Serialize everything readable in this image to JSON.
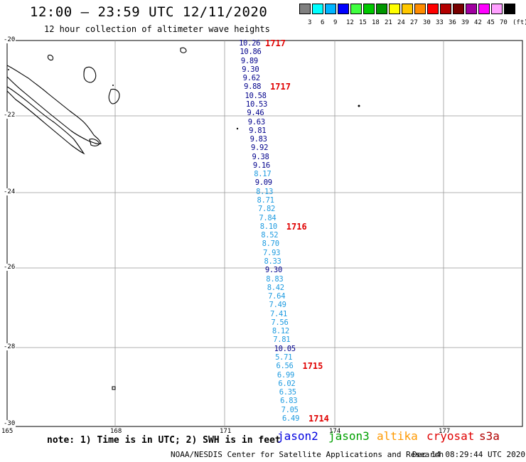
{
  "title": "12:00 – 23:59 UTC 12/11/2020",
  "subtitle": "12 hour collection of altimeter wave heights",
  "legend": {
    "colors": [
      "#808080",
      "#00ffff",
      "#00b4ff",
      "#0000ff",
      "#40ff40",
      "#00c800",
      "#009600",
      "#ffff00",
      "#ffc800",
      "#ff8c00",
      "#ff0000",
      "#b40000",
      "#780000",
      "#a000a0",
      "#ff00ff",
      "#ffa0ff",
      "#000000"
    ],
    "labels": [
      "3",
      "6",
      "9",
      "12",
      "15",
      "18",
      "21",
      "24",
      "27",
      "30",
      "33",
      "36",
      "39",
      "42",
      "45",
      "70",
      "(ft)"
    ]
  },
  "map": {
    "lat_labels": [
      "-20",
      "-22",
      "-24",
      "-26",
      "-28",
      "-30"
    ],
    "lon_labels": [
      "165",
      "168",
      "171",
      "174",
      "177"
    ]
  },
  "track": {
    "satellite": "jason2",
    "wave_heights": [
      {
        "v": "10.26",
        "c": "#00008b"
      },
      {
        "v": "10.86",
        "c": "#00008b"
      },
      {
        "v": "9.89",
        "c": "#00008b"
      },
      {
        "v": "9.30",
        "c": "#00008b"
      },
      {
        "v": "9.62",
        "c": "#00008b"
      },
      {
        "v": "9.88",
        "c": "#00008b"
      },
      {
        "v": "10.58",
        "c": "#00008b"
      },
      {
        "v": "10.53",
        "c": "#00008b"
      },
      {
        "v": "9.46",
        "c": "#00008b"
      },
      {
        "v": "9.63",
        "c": "#00008b"
      },
      {
        "v": "9.81",
        "c": "#00008b"
      },
      {
        "v": "9.83",
        "c": "#00008b"
      },
      {
        "v": "9.92",
        "c": "#00008b"
      },
      {
        "v": "9.38",
        "c": "#00008b"
      },
      {
        "v": "9.16",
        "c": "#00008b"
      },
      {
        "v": "8.17",
        "c": "#1e9be0"
      },
      {
        "v": "9.09",
        "c": "#00008b"
      },
      {
        "v": "8.13",
        "c": "#1e9be0"
      },
      {
        "v": "8.71",
        "c": "#1e9be0"
      },
      {
        "v": "7.82",
        "c": "#1e9be0"
      },
      {
        "v": "7.84",
        "c": "#1e9be0"
      },
      {
        "v": "8.10",
        "c": "#1e9be0"
      },
      {
        "v": "8.52",
        "c": "#1e9be0"
      },
      {
        "v": "8.70",
        "c": "#1e9be0"
      },
      {
        "v": "7.93",
        "c": "#1e9be0"
      },
      {
        "v": "8.33",
        "c": "#1e9be0"
      },
      {
        "v": "9.30",
        "c": "#00008b"
      },
      {
        "v": "8.83",
        "c": "#1e9be0"
      },
      {
        "v": "8.42",
        "c": "#1e9be0"
      },
      {
        "v": "7.64",
        "c": "#1e9be0"
      },
      {
        "v": "7.49",
        "c": "#1e9be0"
      },
      {
        "v": "7.41",
        "c": "#1e9be0"
      },
      {
        "v": "7.56",
        "c": "#1e9be0"
      },
      {
        "v": "8.12",
        "c": "#1e9be0"
      },
      {
        "v": "7.81",
        "c": "#1e9be0"
      },
      {
        "v": "10.05",
        "c": "#00008b"
      },
      {
        "v": "5.71",
        "c": "#1e9be0"
      },
      {
        "v": "6.56",
        "c": "#1e9be0"
      },
      {
        "v": "6.99",
        "c": "#1e9be0"
      },
      {
        "v": "6.02",
        "c": "#1e9be0"
      },
      {
        "v": "6.35",
        "c": "#1e9be0"
      },
      {
        "v": "6.83",
        "c": "#1e9be0"
      },
      {
        "v": "7.05",
        "c": "#1e9be0"
      },
      {
        "v": "6.49",
        "c": "#1e9be0"
      }
    ],
    "times": [
      {
        "t": "1717",
        "idx": 0
      },
      {
        "t": "1717",
        "idx": 5
      },
      {
        "t": "1716",
        "idx": 21
      },
      {
        "t": "1715",
        "idx": 37
      },
      {
        "t": "1714",
        "idx": 43
      }
    ]
  },
  "note": "note: 1) Time is in UTC; 2) SWH is in feet",
  "satellites": [
    {
      "name": "jason2",
      "color": "#0000e0"
    },
    {
      "name": "jason3",
      "color": "#00a000"
    },
    {
      "name": "altika",
      "color": "#ff9900"
    },
    {
      "name": "cryosat",
      "color": "#e00000"
    },
    {
      "name": "s3a",
      "color": "#b00000"
    }
  ],
  "credit": "NOAA/NESDIS Center for Satellite Applications and Research",
  "timestamp": "Dec 14 08:29:44 UTC 2020"
}
